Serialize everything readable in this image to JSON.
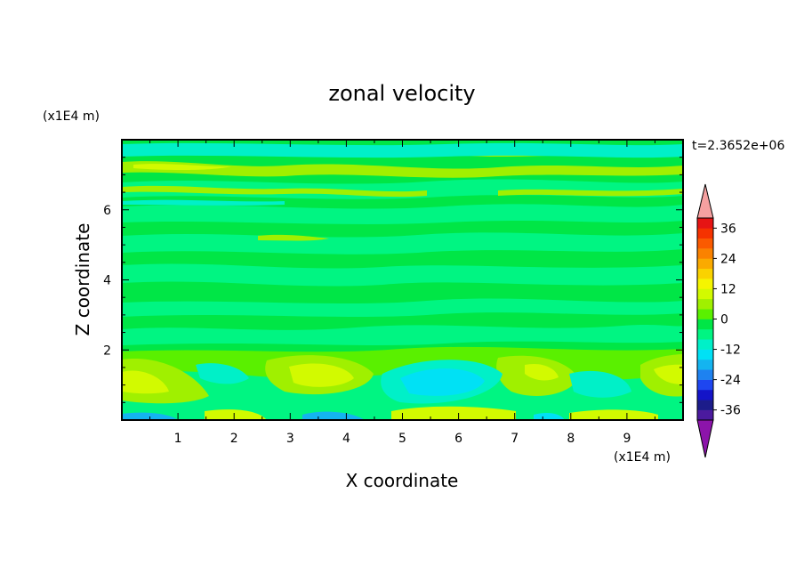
{
  "chart_data": {
    "type": "heatmap",
    "title": "zonal velocity",
    "time_label": "t=2.3652e+06",
    "xlabel": "X coordinate",
    "ylabel": "Z coordinate",
    "x_unit": "(x1E4 m)",
    "y_unit": "(x1E4 m)",
    "xlim": [
      0,
      10
    ],
    "ylim": [
      0,
      8
    ],
    "x_ticks": [
      "1",
      "2",
      "3",
      "4",
      "5",
      "6",
      "7",
      "8",
      "9"
    ],
    "y_ticks": [
      "2",
      "4",
      "6"
    ],
    "colorbar": {
      "levels": [
        -40,
        -36,
        -32,
        -28,
        -24,
        -20,
        -16,
        -12,
        -8,
        -4,
        0,
        4,
        8,
        12,
        16,
        20,
        24,
        28,
        32,
        36,
        40
      ],
      "labels": [
        "-36",
        "-24",
        "-12",
        "0",
        "12",
        "24",
        "36"
      ],
      "colors": [
        "#4b1a9e",
        "#1c1c8a",
        "#1414c8",
        "#1e46f0",
        "#1e82f0",
        "#14b4f0",
        "#00e1f5",
        "#00f0c8",
        "#00f582",
        "#00e646",
        "#5af000",
        "#a0f000",
        "#d2fa00",
        "#f5f500",
        "#fad200",
        "#faaa00",
        "#fa8200",
        "#fa5a00",
        "#f53200",
        "#e61414"
      ],
      "under_color": "#8c14aa",
      "over_color": "#f5a0a0"
    },
    "field_notes": "Field is mostly 0–8 with alternating horizontal bands; stronger positive lobes (~8–16) near the bottom at x≈0.5,3.5,7.5,9.5; a cyan (~-4 to -8) region near the bottom around x≈5–6.5; thin blue strips (~-8 to -12) at the very bottom near x≈0.5 and 3.5; upper layer z≈6.5–7.8 has thin cyan and yellow streaks."
  }
}
